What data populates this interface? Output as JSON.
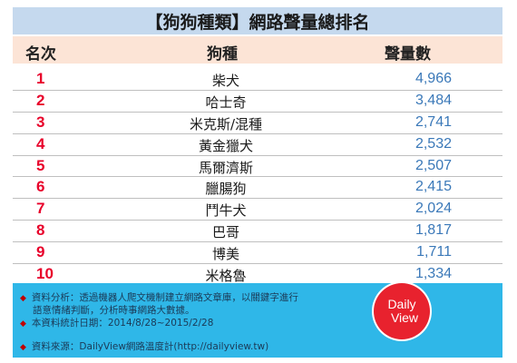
{
  "title": "【狗狗種類】網路聲量總排名",
  "headers": {
    "rank": "名次",
    "breed": "狗種",
    "count": "聲量數"
  },
  "rows": [
    {
      "rank": "1",
      "breed": "柴犬",
      "count": "4,966"
    },
    {
      "rank": "2",
      "breed": "哈士奇",
      "count": "3,484"
    },
    {
      "rank": "3",
      "breed": "米克斯/混種",
      "count": "2,741"
    },
    {
      "rank": "4",
      "breed": "黃金獵犬",
      "count": "2,532"
    },
    {
      "rank": "5",
      "breed": "馬爾濟斯",
      "count": "2,507"
    },
    {
      "rank": "6",
      "breed": "臘腸狗",
      "count": "2,415"
    },
    {
      "rank": "7",
      "breed": "鬥牛犬",
      "count": "2,024"
    },
    {
      "rank": "8",
      "breed": "巴哥",
      "count": "1,817"
    },
    {
      "rank": "9",
      "breed": "博美",
      "count": "1,711"
    },
    {
      "rank": "10",
      "breed": "米格魯",
      "count": "1,334"
    }
  ],
  "footer": {
    "note1": "資料分析：透過機器人爬文機制建立網路文章庫，以關鍵字進行",
    "note1b": "語意情緒判斷，分析時事網路大數據。",
    "note2": "本資料統計日期：2014/8/28~2015/2/28",
    "note3": "資料來源：DailyView網路溫度計(http://dailyview.tw)",
    "bullet": "◆"
  },
  "logo": {
    "line1": "Daily",
    "line2": "View"
  },
  "colors": {
    "title_bg": "#c5d9ee",
    "header_bg": "#fce4d6",
    "rank": "#e8002a",
    "count": "#3a78b8",
    "footer_bg": "#2fb7e8",
    "logo_bg": "#e8222e"
  }
}
